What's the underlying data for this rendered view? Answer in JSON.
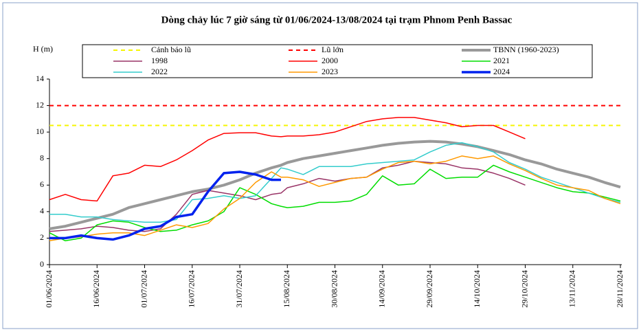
{
  "chart_data": {
    "type": "line",
    "title": "Dòng chảy lúc 7 giờ sáng từ 01/06/2024-13/08/2024 tại trạm Phnom Penh Bassac",
    "y_label": "H (m)",
    "x": [
      "01/06/2024",
      "06/06/2024",
      "11/06/2024",
      "16/06/2024",
      "21/06/2024",
      "26/06/2024",
      "01/07/2024",
      "06/07/2024",
      "11/07/2024",
      "16/07/2024",
      "21/07/2024",
      "26/07/2024",
      "31/07/2024",
      "05/08/2024",
      "10/08/2024",
      "13/08/2024",
      "15/08/2024",
      "20/08/2024",
      "25/08/2024",
      "30/08/2024",
      "04/09/2024",
      "09/09/2024",
      "14/09/2024",
      "19/09/2024",
      "24/09/2024",
      "29/09/2024",
      "04/10/2024",
      "09/10/2024",
      "14/10/2024",
      "19/10/2024",
      "24/10/2024",
      "29/10/2024",
      "03/11/2024",
      "08/11/2024",
      "13/11/2024",
      "18/11/2024",
      "23/11/2024",
      "28/11/2024"
    ],
    "xlim": [
      "01/06/2024",
      "28/11/2024"
    ],
    "xticks": [
      "01/06/2024",
      "16/06/2024",
      "01/07/2024",
      "16/07/2024",
      "31/07/2024",
      "15/08/2024",
      "30/08/2024",
      "14/09/2024",
      "29/09/2024",
      "14/10/2024",
      "29/10/2024",
      "13/11/2024",
      "28/11/2024"
    ],
    "ylim": [
      0,
      14
    ],
    "yticks": [
      0,
      2,
      4,
      6,
      8,
      10,
      12,
      14
    ],
    "grid": false,
    "hlines": [
      {
        "name": "Cảnh báo lũ",
        "color": "#f5f500",
        "value": 10.5
      },
      {
        "name": "Lũ lớn",
        "color": "#ff0000",
        "value": 12
      }
    ],
    "series": [
      {
        "name": "TBNN (1960-2023)",
        "color": "#999999",
        "line_width": 4,
        "values": [
          2.7,
          2.9,
          3.2,
          3.5,
          3.8,
          4.3,
          4.6,
          4.9,
          5.2,
          5.5,
          5.7,
          6.0,
          6.4,
          6.9,
          7.3,
          7.5,
          7.7,
          8.0,
          8.2,
          8.4,
          8.6,
          8.8,
          9.0,
          9.15,
          9.25,
          9.3,
          9.25,
          9.1,
          8.9,
          8.6,
          8.3,
          7.9,
          7.6,
          7.2,
          6.9,
          6.6,
          6.2,
          5.85
        ]
      },
      {
        "name": "1998",
        "color": "#993366",
        "line_width": 1.5,
        "values": [
          2.5,
          2.6,
          2.7,
          2.9,
          2.8,
          2.6,
          2.5,
          2.7,
          3.8,
          5.3,
          5.6,
          5.4,
          5.2,
          4.9,
          5.3,
          5.4,
          5.8,
          6.1,
          6.5,
          6.3,
          6.5,
          6.6,
          7.3,
          7.5,
          7.8,
          7.7,
          7.6,
          7.3,
          7.2,
          6.9,
          6.5,
          6.0,
          null,
          null,
          null,
          null,
          null,
          null
        ]
      },
      {
        "name": "2000",
        "color": "#ff0000",
        "line_width": 1.5,
        "values": [
          4.9,
          5.3,
          4.9,
          4.8,
          6.7,
          6.9,
          7.5,
          7.4,
          7.9,
          8.6,
          9.4,
          9.9,
          9.95,
          9.95,
          9.7,
          9.65,
          9.7,
          9.7,
          9.8,
          10.0,
          10.4,
          10.8,
          11.0,
          11.1,
          11.1,
          10.9,
          10.7,
          10.4,
          10.5,
          10.5,
          10.0,
          9.5,
          null,
          null,
          null,
          null,
          null,
          null
        ]
      },
      {
        "name": "2021",
        "color": "#00dd00",
        "line_width": 1.5,
        "values": [
          2.4,
          1.8,
          2.0,
          3.0,
          3.3,
          3.2,
          2.8,
          2.5,
          2.6,
          3.0,
          3.3,
          4.0,
          5.8,
          5.3,
          4.6,
          4.4,
          4.3,
          4.4,
          4.7,
          4.7,
          4.8,
          5.3,
          6.7,
          6.0,
          6.1,
          7.2,
          6.5,
          6.6,
          6.6,
          7.5,
          7.0,
          6.6,
          6.2,
          5.8,
          5.5,
          5.4,
          5.1,
          4.8
        ]
      },
      {
        "name": "2022",
        "color": "#33cccc",
        "line_width": 1.5,
        "values": [
          3.8,
          3.8,
          3.6,
          3.6,
          3.4,
          3.3,
          3.2,
          3.2,
          3.4,
          4.9,
          5.0,
          5.2,
          5.0,
          5.2,
          6.5,
          7.3,
          7.2,
          6.8,
          7.4,
          7.4,
          7.4,
          7.6,
          7.7,
          7.8,
          7.9,
          8.5,
          9.0,
          9.2,
          8.9,
          8.5,
          7.7,
          7.2,
          6.6,
          6.2,
          5.8,
          5.4,
          5.0,
          4.7
        ]
      },
      {
        "name": "2023",
        "color": "#ff9900",
        "line_width": 1.5,
        "values": [
          1.8,
          2.0,
          2.1,
          2.3,
          2.4,
          2.4,
          2.2,
          2.6,
          3.0,
          2.8,
          3.1,
          4.2,
          5.0,
          6.2,
          7.0,
          6.6,
          6.6,
          6.4,
          5.9,
          6.2,
          6.5,
          6.6,
          7.2,
          7.7,
          7.8,
          7.6,
          7.8,
          8.2,
          8.0,
          8.2,
          7.6,
          7.1,
          6.5,
          6.0,
          5.8,
          5.6,
          5.0,
          4.6
        ]
      },
      {
        "name": "2024",
        "color": "#0022ee",
        "line_width": 3.5,
        "values": [
          2.0,
          2.0,
          2.2,
          2.0,
          1.9,
          2.2,
          2.7,
          2.9,
          3.6,
          3.8,
          5.5,
          6.9,
          7.0,
          6.8,
          6.4,
          6.4,
          null,
          null,
          null,
          null,
          null,
          null,
          null,
          null,
          null,
          null,
          null,
          null,
          null,
          null,
          null,
          null,
          null,
          null,
          null,
          null,
          null,
          null
        ]
      }
    ]
  }
}
